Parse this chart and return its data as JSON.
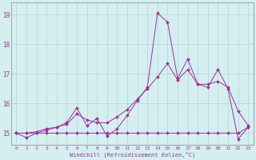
{
  "xlabel": "Windchill (Refroidissement éolien,°C)",
  "x_values": [
    0,
    1,
    2,
    3,
    4,
    5,
    6,
    7,
    8,
    9,
    10,
    11,
    12,
    13,
    14,
    15,
    16,
    17,
    18,
    19,
    20,
    21,
    22,
    23
  ],
  "y_spiky": [
    15.0,
    14.85,
    15.0,
    15.1,
    15.2,
    15.35,
    15.85,
    15.25,
    15.5,
    14.9,
    15.15,
    15.6,
    16.1,
    16.55,
    19.05,
    18.75,
    16.85,
    17.5,
    16.65,
    16.55,
    17.15,
    16.5,
    14.8,
    15.2
  ],
  "y_gradual": [
    15.0,
    15.0,
    15.05,
    15.15,
    15.2,
    15.3,
    15.65,
    15.45,
    15.35,
    15.35,
    15.55,
    15.8,
    16.15,
    16.5,
    16.9,
    17.35,
    16.8,
    17.15,
    16.65,
    16.65,
    16.75,
    16.55,
    15.75,
    15.25
  ],
  "y_flat": [
    15.0,
    15.0,
    15.0,
    15.0,
    15.0,
    15.0,
    15.0,
    15.0,
    15.0,
    15.0,
    15.0,
    15.0,
    15.0,
    15.0,
    15.0,
    15.0,
    15.0,
    15.0,
    15.0,
    15.0,
    15.0,
    15.0,
    15.0,
    15.2
  ],
  "line_color": "#993399",
  "bg_color": "#d5eef0",
  "grid_color": "#b8d8dc",
  "ylim": [
    14.6,
    19.4
  ],
  "yticks": [
    15,
    16,
    17,
    18,
    19
  ],
  "xticks": [
    0,
    1,
    2,
    3,
    4,
    5,
    6,
    7,
    8,
    9,
    10,
    11,
    12,
    13,
    14,
    15,
    16,
    17,
    18,
    19,
    20,
    21,
    22,
    23
  ]
}
